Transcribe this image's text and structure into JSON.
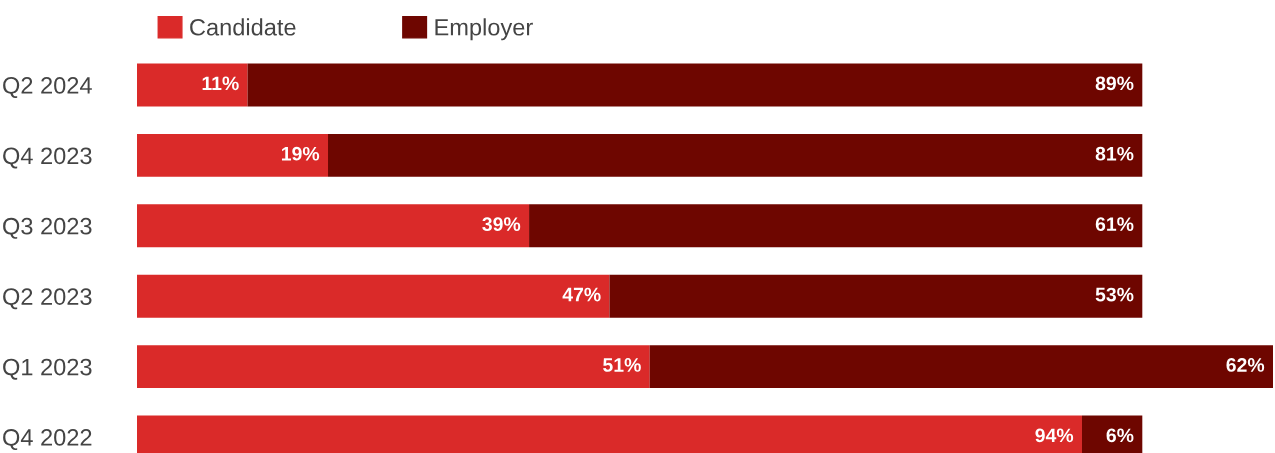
{
  "chart_data": {
    "type": "bar",
    "orientation": "horizontal",
    "stacked": true,
    "legend": "top left",
    "categories": [
      "Q2 2024",
      "Q4 2023",
      "Q3 2023",
      "Q2 2023",
      "Q1 2023",
      "Q4 2022"
    ],
    "series": [
      {
        "name": "Candidate",
        "color": "#da2a29",
        "values": [
          11,
          19,
          39,
          47,
          51,
          94
        ],
        "value_labels": [
          "11%",
          "19%",
          "39%",
          "47%",
          "51%",
          "94%"
        ]
      },
      {
        "name": "Employer",
        "color": "#6e0600",
        "values": [
          89,
          81,
          61,
          53,
          62,
          6
        ],
        "value_labels": [
          "89%",
          "81%",
          "61%",
          "53%",
          "62%",
          "6%"
        ]
      }
    ]
  }
}
